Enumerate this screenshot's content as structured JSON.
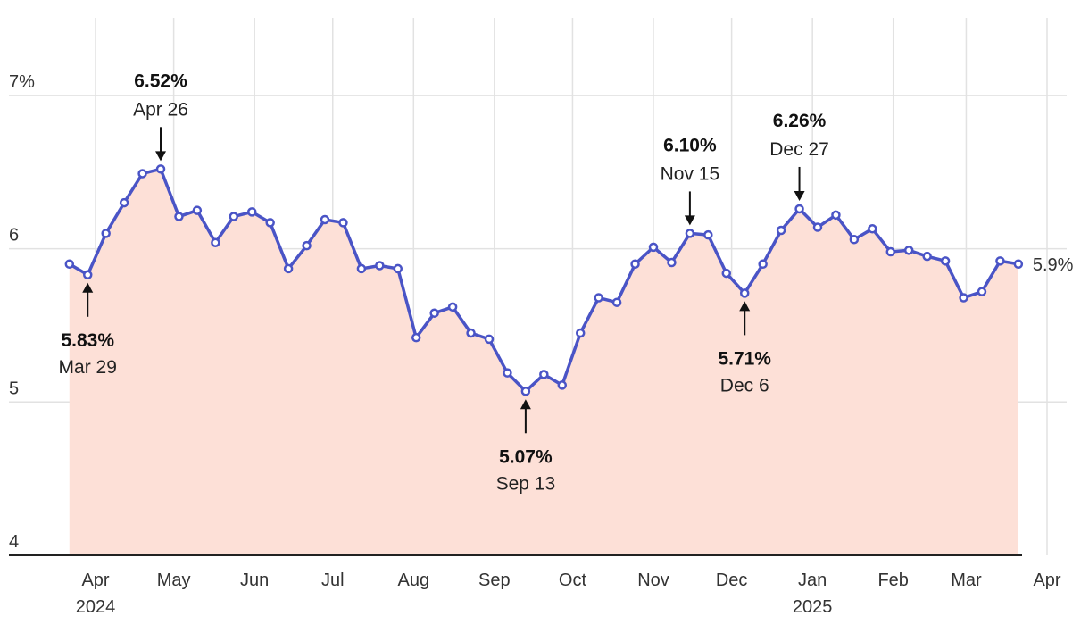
{
  "chart_data": {
    "type": "area",
    "title": "",
    "xlabel": "",
    "ylabel": "",
    "ylim": [
      4,
      7
    ],
    "yticks": [
      {
        "value": 7,
        "label": "7%"
      },
      {
        "value": 6,
        "label": "6"
      },
      {
        "value": 5,
        "label": "5"
      },
      {
        "value": 4,
        "label": "4"
      }
    ],
    "xticks": [
      {
        "date": "2024-04-01",
        "label": "Apr",
        "year": "2024"
      },
      {
        "date": "2024-05-01",
        "label": "May"
      },
      {
        "date": "2024-06-01",
        "label": "Jun"
      },
      {
        "date": "2024-07-01",
        "label": "Jul"
      },
      {
        "date": "2024-08-01",
        "label": "Aug"
      },
      {
        "date": "2024-09-01",
        "label": "Sep"
      },
      {
        "date": "2024-10-01",
        "label": "Oct"
      },
      {
        "date": "2024-11-01",
        "label": "Nov"
      },
      {
        "date": "2024-12-01",
        "label": "Dec"
      },
      {
        "date": "2025-01-01",
        "label": "Jan",
        "year": "2025"
      },
      {
        "date": "2025-02-01",
        "label": "Feb"
      },
      {
        "date": "2025-03-01",
        "label": "Mar"
      },
      {
        "date": "2025-04-01",
        "label": "Apr"
      }
    ],
    "grid": true,
    "colors": {
      "line": "#4a54c6",
      "fill": "#fde0d7",
      "grid": "#e2e2e2",
      "axis": "#222222"
    },
    "end_label": "5.9%",
    "series": [
      {
        "x": [
          "2024-03-22",
          "2024-03-29",
          "2024-04-05",
          "2024-04-12",
          "2024-04-19",
          "2024-04-26",
          "2024-05-03",
          "2024-05-10",
          "2024-05-17",
          "2024-05-24",
          "2024-05-31",
          "2024-06-07",
          "2024-06-14",
          "2024-06-21",
          "2024-06-28",
          "2024-07-05",
          "2024-07-12",
          "2024-07-19",
          "2024-07-26",
          "2024-08-02",
          "2024-08-09",
          "2024-08-16",
          "2024-08-23",
          "2024-08-30",
          "2024-09-06",
          "2024-09-13",
          "2024-09-20",
          "2024-09-27",
          "2024-10-04",
          "2024-10-11",
          "2024-10-18",
          "2024-10-25",
          "2024-11-01",
          "2024-11-08",
          "2024-11-15",
          "2024-11-22",
          "2024-11-29",
          "2024-12-06",
          "2024-12-13",
          "2024-12-20",
          "2024-12-27",
          "2025-01-03",
          "2025-01-10",
          "2025-01-17",
          "2025-01-24",
          "2025-01-31",
          "2025-02-07",
          "2025-02-14",
          "2025-02-21",
          "2025-02-28",
          "2025-03-07",
          "2025-03-14",
          "2025-03-21"
        ],
        "values": [
          5.9,
          5.83,
          6.1,
          6.3,
          6.49,
          6.52,
          6.21,
          6.25,
          6.04,
          6.21,
          6.24,
          6.17,
          5.87,
          6.02,
          6.19,
          6.17,
          5.87,
          5.89,
          5.87,
          5.42,
          5.58,
          5.62,
          5.45,
          5.41,
          5.19,
          5.07,
          5.18,
          5.11,
          5.45,
          5.68,
          5.65,
          5.9,
          6.01,
          5.91,
          6.1,
          6.09,
          5.84,
          5.71,
          5.9,
          6.12,
          6.26,
          6.14,
          6.22,
          6.06,
          6.13,
          5.98,
          5.99,
          5.95,
          5.92,
          5.68,
          5.72,
          5.92,
          5.9
        ]
      }
    ],
    "annotations": [
      {
        "date": "2024-03-29",
        "value": 5.83,
        "value_label": "5.83%",
        "date_label": "Mar 29",
        "side": "below"
      },
      {
        "date": "2024-04-26",
        "value": 6.52,
        "value_label": "6.52%",
        "date_label": "Apr 26",
        "side": "above"
      },
      {
        "date": "2024-09-13",
        "value": 5.07,
        "value_label": "5.07%",
        "date_label": "Sep 13",
        "side": "below"
      },
      {
        "date": "2024-11-15",
        "value": 6.1,
        "value_label": "6.10%",
        "date_label": "Nov 15",
        "side": "above"
      },
      {
        "date": "2024-12-06",
        "value": 5.71,
        "value_label": "5.71%",
        "date_label": "Dec 6",
        "side": "below"
      },
      {
        "date": "2024-12-27",
        "value": 6.26,
        "value_label": "6.26%",
        "date_label": "Dec 27",
        "side": "above"
      }
    ]
  }
}
